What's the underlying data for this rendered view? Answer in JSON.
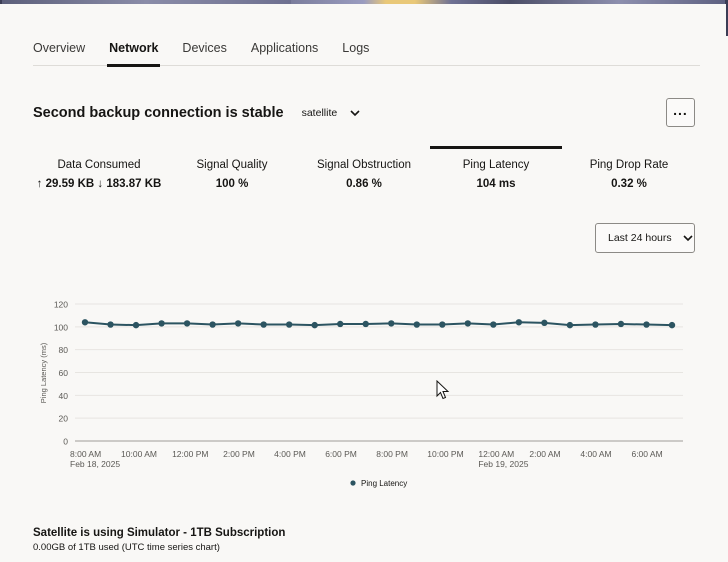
{
  "tabs": [
    {
      "label": "Overview",
      "active": false
    },
    {
      "label": "Network",
      "active": true
    },
    {
      "label": "Devices",
      "active": false
    },
    {
      "label": "Applications",
      "active": false
    },
    {
      "label": "Logs",
      "active": false
    }
  ],
  "header": {
    "title": "Second backup connection is stable",
    "connection_select": "satellite",
    "more_icon": "ellipsis-icon"
  },
  "metrics": [
    {
      "label": "Data Consumed",
      "value": "↑ 29.59 KB ↓ 183.87 KB",
      "active": false
    },
    {
      "label": "Signal Quality",
      "value": "100 %",
      "active": false
    },
    {
      "label": "Signal Obstruction",
      "value": "0.86 %",
      "active": false
    },
    {
      "label": "Ping Latency",
      "value": "104 ms",
      "active": true
    },
    {
      "label": "Ping Drop Rate",
      "value": "0.32 %",
      "active": false
    }
  ],
  "time_range": {
    "selected": "Last 24 hours"
  },
  "chart_data": {
    "type": "line",
    "title": "",
    "xlabel": "",
    "ylabel": "Ping Latency (ms)",
    "ylim": [
      0,
      120
    ],
    "yticks": [
      0,
      20,
      40,
      60,
      80,
      100,
      120
    ],
    "xtick_labels": [
      "8:00 AM",
      "10:00 AM",
      "12:00 PM",
      "2:00 PM",
      "4:00 PM",
      "6:00 PM",
      "8:00 PM",
      "10:00 PM",
      "12:00 AM",
      "2:00 AM",
      "4:00 AM",
      "6:00 AM"
    ],
    "xtick_sublabels": {
      "0": "Feb 18, 2025",
      "8": "Feb 19, 2025"
    },
    "grid": true,
    "legend_position": "bottom",
    "color": "#2c5461",
    "series": [
      {
        "name": "Ping Latency",
        "x": [
          "Feb 18 8:00 AM",
          "9:00 AM",
          "10:00 AM",
          "11:00 AM",
          "12:00 PM",
          "1:00 PM",
          "2:00 PM",
          "3:00 PM",
          "4:00 PM",
          "5:00 PM",
          "6:00 PM",
          "7:00 PM",
          "8:00 PM",
          "9:00 PM",
          "10:00 PM",
          "11:00 PM",
          "Feb 19 12:00 AM",
          "1:00 AM",
          "2:00 AM",
          "3:00 AM",
          "4:00 AM",
          "5:00 AM",
          "6:00 AM",
          "7:00 AM"
        ],
        "values": [
          104,
          102,
          101.5,
          103,
          103,
          102,
          103,
          102,
          102,
          101.5,
          102.5,
          102.5,
          103,
          102,
          102,
          103,
          102,
          104,
          103.5,
          101.5,
          102,
          102.5,
          102,
          101.5
        ]
      }
    ]
  },
  "subscription": {
    "title": "Satellite is using Simulator - 1TB Subscription",
    "description": "0.00GB of 1TB used (UTC time series chart)"
  }
}
